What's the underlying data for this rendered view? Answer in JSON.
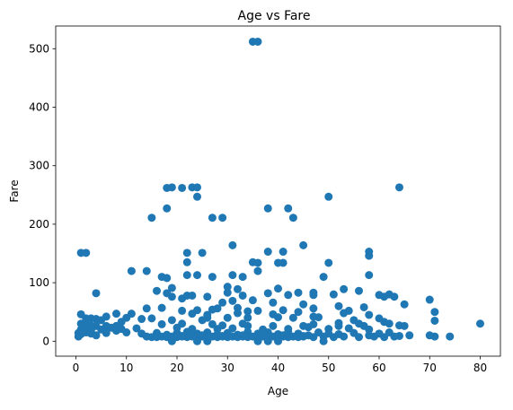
{
  "chart_data": {
    "type": "scatter",
    "title": "Age vs Fare",
    "xlabel": "Age",
    "ylabel": "Fare",
    "xlim": [
      -4,
      84
    ],
    "ylim": [
      -25.6,
      538.8
    ],
    "xticks": [
      0,
      10,
      20,
      30,
      40,
      50,
      60,
      70,
      80
    ],
    "yticks": [
      0,
      100,
      200,
      300,
      400,
      500
    ],
    "grid": false,
    "legend": "none",
    "colors": {
      "marker": "#1f77b4"
    },
    "series": [
      {
        "points": [
          [
            35,
            512
          ],
          [
            36,
            512
          ],
          [
            18,
            262
          ],
          [
            19,
            263
          ],
          [
            21,
            262
          ],
          [
            23,
            263
          ],
          [
            24,
            263
          ],
          [
            64,
            263
          ],
          [
            24,
            247
          ],
          [
            50,
            247
          ],
          [
            18,
            227
          ],
          [
            38,
            227
          ],
          [
            42,
            227
          ],
          [
            15,
            211
          ],
          [
            27,
            211
          ],
          [
            29,
            211
          ],
          [
            43,
            211
          ],
          [
            31,
            164
          ],
          [
            45,
            164
          ],
          [
            1,
            151
          ],
          [
            2,
            151
          ],
          [
            22,
            151
          ],
          [
            25,
            151
          ],
          [
            38,
            153
          ],
          [
            58,
            153
          ],
          [
            58,
            146
          ],
          [
            41,
            153
          ],
          [
            22,
            135
          ],
          [
            35,
            135
          ],
          [
            36,
            134
          ],
          [
            40,
            134
          ],
          [
            41,
            134
          ],
          [
            50,
            134
          ],
          [
            11,
            120
          ],
          [
            14,
            120
          ],
          [
            36,
            120
          ],
          [
            22,
            113
          ],
          [
            24,
            113
          ],
          [
            17,
            110
          ],
          [
            18,
            108
          ],
          [
            27,
            110
          ],
          [
            31,
            113
          ],
          [
            33,
            110
          ],
          [
            49,
            110
          ],
          [
            58,
            113
          ],
          [
            19,
            91
          ],
          [
            16,
            86
          ],
          [
            4,
            82
          ],
          [
            18,
            82
          ],
          [
            30,
            83
          ],
          [
            38,
            82
          ],
          [
            44,
            83
          ],
          [
            47,
            79
          ],
          [
            22,
            78
          ],
          [
            23,
            78
          ],
          [
            19,
            76
          ],
          [
            21,
            73
          ],
          [
            26,
            76
          ],
          [
            33,
            78
          ],
          [
            42,
            79
          ],
          [
            51,
            80
          ],
          [
            60,
            79
          ],
          [
            62,
            80
          ],
          [
            63,
            76
          ],
          [
            70,
            71
          ],
          [
            29,
            66
          ],
          [
            31,
            69
          ],
          [
            35,
            70
          ],
          [
            39,
            66
          ],
          [
            45,
            63
          ],
          [
            52,
            60
          ],
          [
            57,
            58
          ],
          [
            65,
            63
          ],
          [
            14,
            56
          ],
          [
            17,
            57
          ],
          [
            28,
            56
          ],
          [
            32,
            57
          ],
          [
            47,
            56
          ],
          [
            21,
            52
          ],
          [
            24,
            53
          ],
          [
            27,
            54
          ],
          [
            36,
            52
          ],
          [
            41,
            53
          ],
          [
            54,
            52
          ],
          [
            8,
            47
          ],
          [
            11,
            47
          ],
          [
            34,
            51
          ],
          [
            44,
            50
          ],
          [
            71,
            50
          ],
          [
            1,
            46
          ],
          [
            6,
            42
          ],
          [
            10,
            40
          ],
          [
            13,
            38
          ],
          [
            15,
            39
          ],
          [
            30,
            40
          ],
          [
            40,
            41
          ],
          [
            43,
            40
          ],
          [
            48,
            41
          ],
          [
            60,
            39
          ],
          [
            2,
            39
          ],
          [
            3,
            39
          ],
          [
            4,
            38
          ],
          [
            5,
            36
          ],
          [
            9,
            33
          ],
          [
            19,
            36
          ],
          [
            25,
            36
          ],
          [
            55,
            36
          ],
          [
            71,
            35
          ],
          [
            61,
            33
          ],
          [
            62,
            30
          ],
          [
            64,
            27
          ],
          [
            80,
            30
          ],
          [
            1,
            30
          ],
          [
            2,
            29
          ],
          [
            3,
            27
          ],
          [
            4,
            26
          ],
          [
            6,
            26
          ],
          [
            8,
            26
          ],
          [
            17,
            29
          ],
          [
            27,
            29
          ],
          [
            34,
            26
          ],
          [
            45,
            26
          ],
          [
            52,
            26
          ],
          [
            57,
            26
          ],
          [
            65,
            26
          ],
          [
            1,
            20
          ],
          [
            2,
            21
          ],
          [
            3,
            19
          ],
          [
            5,
            20
          ],
          [
            7,
            23
          ],
          [
            9,
            21
          ],
          [
            12,
            22
          ],
          [
            20,
            23
          ],
          [
            23,
            21
          ],
          [
            28,
            21
          ],
          [
            31,
            22
          ],
          [
            37,
            20
          ],
          [
            42,
            21
          ],
          [
            46,
            24
          ],
          [
            50,
            21
          ],
          [
            54,
            22
          ],
          [
            58,
            20
          ],
          [
            0.5,
            14
          ],
          [
            1,
            12
          ],
          [
            2,
            15
          ],
          [
            3,
            13
          ],
          [
            4,
            10
          ],
          [
            6,
            14
          ],
          [
            8,
            18
          ],
          [
            10,
            15
          ],
          [
            13,
            13
          ],
          [
            16,
            14
          ],
          [
            18,
            11
          ],
          [
            20,
            14
          ],
          [
            22,
            16
          ],
          [
            24,
            13
          ],
          [
            26,
            15
          ],
          [
            28,
            12
          ],
          [
            30,
            14
          ],
          [
            32,
            11
          ],
          [
            34,
            16
          ],
          [
            36,
            13
          ],
          [
            38,
            15
          ],
          [
            40,
            12
          ],
          [
            42,
            16
          ],
          [
            44,
            13
          ],
          [
            46,
            10
          ],
          [
            48,
            15
          ],
          [
            50,
            13
          ],
          [
            52,
            12
          ],
          [
            55,
            14
          ],
          [
            58,
            10
          ],
          [
            60,
            13
          ],
          [
            62,
            15
          ],
          [
            64,
            9
          ],
          [
            66,
            10
          ],
          [
            70,
            10
          ],
          [
            71,
            8
          ],
          [
            74,
            8
          ],
          [
            0.5,
            8
          ],
          [
            14,
            8
          ],
          [
            15,
            7
          ],
          [
            16,
            7
          ],
          [
            17,
            8
          ],
          [
            18,
            7
          ],
          [
            19,
            8
          ],
          [
            20,
            7
          ],
          [
            21,
            8
          ],
          [
            22,
            7
          ],
          [
            23,
            8
          ],
          [
            24,
            7
          ],
          [
            25,
            8
          ],
          [
            26,
            7
          ],
          [
            27,
            8
          ],
          [
            28,
            7
          ],
          [
            29,
            8
          ],
          [
            30,
            7
          ],
          [
            31,
            8
          ],
          [
            32,
            7
          ],
          [
            33,
            8
          ],
          [
            34,
            7
          ],
          [
            35,
            8
          ],
          [
            36,
            7
          ],
          [
            37,
            8
          ],
          [
            38,
            7
          ],
          [
            39,
            8
          ],
          [
            40,
            7
          ],
          [
            41,
            8
          ],
          [
            42,
            7
          ],
          [
            43,
            8
          ],
          [
            44,
            7
          ],
          [
            45,
            8
          ],
          [
            47,
            7
          ],
          [
            49,
            8
          ],
          [
            51,
            7
          ],
          [
            53,
            8
          ],
          [
            56,
            7
          ],
          [
            59,
            8
          ],
          [
            61,
            7
          ],
          [
            63,
            8
          ],
          [
            18,
            10
          ],
          [
            21,
            9
          ],
          [
            25,
            10
          ],
          [
            29,
            9
          ],
          [
            33,
            10
          ],
          [
            37,
            9
          ],
          [
            41,
            10
          ],
          [
            45,
            9
          ],
          [
            19,
            0
          ],
          [
            24,
            0
          ],
          [
            26,
            0
          ],
          [
            36,
            0
          ],
          [
            38,
            0
          ],
          [
            40,
            0
          ],
          [
            49,
            0
          ],
          [
            21,
            30
          ],
          [
            29,
            27
          ],
          [
            33,
            30
          ],
          [
            39,
            26
          ],
          [
            47,
            29
          ],
          [
            56,
            30
          ],
          [
            26,
            40
          ],
          [
            34,
            40
          ],
          [
            47,
            42
          ],
          [
            52,
            31
          ],
          [
            23,
            47
          ],
          [
            26,
            45
          ],
          [
            32,
            48
          ],
          [
            39,
            46
          ],
          [
            53,
            48
          ],
          [
            58,
            45
          ],
          [
            30,
            93
          ],
          [
            32,
            89
          ],
          [
            40,
            90
          ],
          [
            47,
            83
          ],
          [
            53,
            89
          ],
          [
            56,
            86
          ],
          [
            61,
            76
          ]
        ]
      }
    ]
  }
}
